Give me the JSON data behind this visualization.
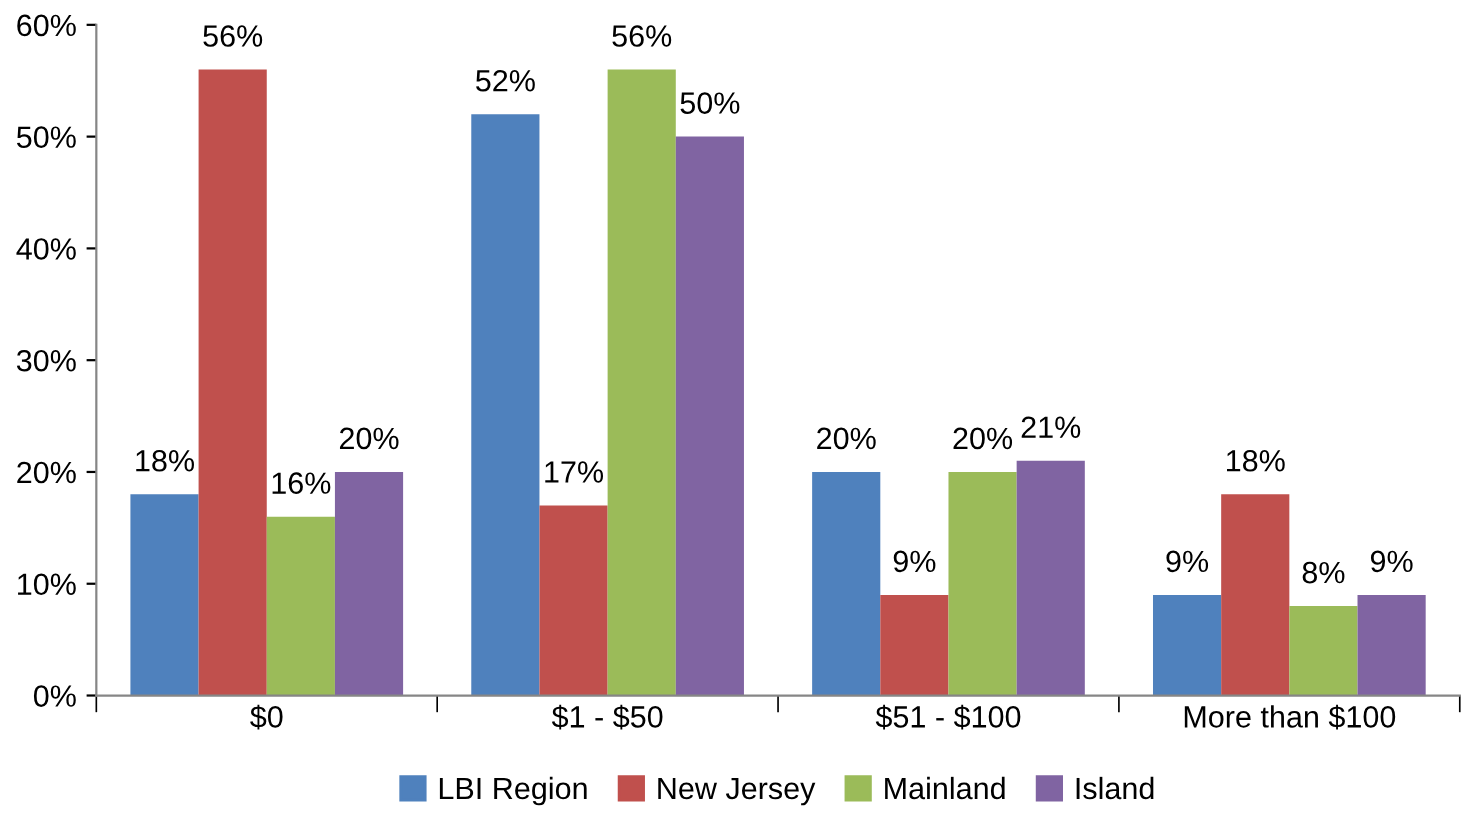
{
  "chart_data": {
    "type": "bar",
    "categories": [
      "$0",
      "$1 - $50",
      "$51 - $100",
      "More than $100"
    ],
    "series": [
      {
        "name": "LBI Region",
        "color": "#4f81bd",
        "values": [
          18,
          52,
          20,
          9
        ],
        "value_labels": [
          "18%",
          "52%",
          "20%",
          "9%"
        ]
      },
      {
        "name": "New Jersey",
        "color": "#c0504d",
        "values": [
          56,
          17,
          9,
          18
        ],
        "value_labels": [
          "56%",
          "17%",
          "9%",
          "18%"
        ]
      },
      {
        "name": "Mainland",
        "color": "#9bbb59",
        "values": [
          16,
          56,
          20,
          8
        ],
        "value_labels": [
          "16%",
          "56%",
          "20%",
          "8%"
        ]
      },
      {
        "name": "Island",
        "color": "#8064a2",
        "values": [
          20,
          50,
          21,
          9
        ],
        "value_labels": [
          "20%",
          "50%",
          "21%",
          "9%"
        ]
      }
    ],
    "ylim": [
      0,
      60
    ],
    "yticks": [
      {
        "value": 0,
        "label": "0%"
      },
      {
        "value": 10,
        "label": "10%"
      },
      {
        "value": 20,
        "label": "20%"
      },
      {
        "value": 30,
        "label": "30%"
      },
      {
        "value": 40,
        "label": "40%"
      },
      {
        "value": 50,
        "label": "50%"
      },
      {
        "value": 60,
        "label": "60%"
      }
    ],
    "grid": false,
    "legend": "bottom"
  }
}
